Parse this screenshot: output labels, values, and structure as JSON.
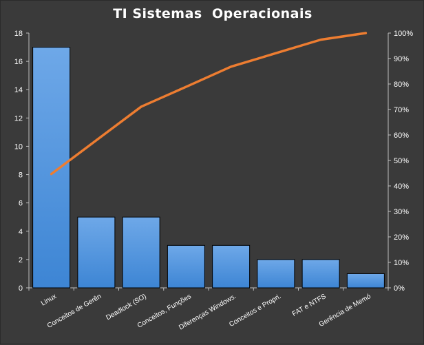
{
  "chart_data": {
    "type": "bar",
    "title": "TI Sistemas  Operacionais",
    "categories": [
      "Linux",
      "Conceitos de Gerên",
      "Deadlock (SO)",
      "Conceitos, Funções",
      "Diferenças Windows.",
      "Conceitos e Propri.",
      "FAT e NTFS",
      "Gerência de Memó"
    ],
    "series": [
      {
        "type": "bar",
        "values": [
          17,
          5,
          5,
          3,
          3,
          2,
          2,
          1
        ],
        "color": "#4a90d9"
      },
      {
        "type": "line",
        "axis": "secondary",
        "values": [
          44.7,
          57.9,
          71.1,
          78.9,
          86.8,
          92.1,
          97.4,
          100
        ],
        "color": "#ed7d31"
      }
    ],
    "ylim": [
      0,
      18
    ],
    "yticks": [
      "0",
      "2",
      "4",
      "6",
      "8",
      "10",
      "12",
      "14",
      "16",
      "18"
    ],
    "y2lim": [
      0,
      100
    ],
    "y2ticks": [
      "0%",
      "10%",
      "20%",
      "30%",
      "40%",
      "50%",
      "60%",
      "70%",
      "80%",
      "90%",
      "100%"
    ],
    "grid": false,
    "legend": "none"
  }
}
